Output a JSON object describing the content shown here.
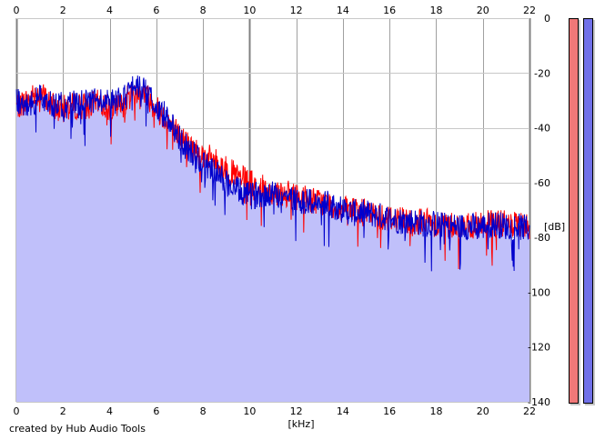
{
  "credit": "created by Hub Audio Tools",
  "meters": {
    "left_color": "#f07878",
    "right_color": "#7070e8"
  },
  "colors": {
    "left_channel": "#ff0000",
    "right_channel": "#0000cc",
    "fill": "#c0c0fa",
    "grid": "#a0a0a0"
  },
  "chart_data": {
    "type": "line",
    "title": "",
    "xlabel": "[kHz]",
    "ylabel": "[dB]",
    "xlim": [
      0,
      22
    ],
    "ylim": [
      -140,
      0
    ],
    "x_ticks": [
      "0",
      "2",
      "4",
      "6",
      "8",
      "10",
      "12",
      "14",
      "16",
      "18",
      "20",
      "22"
    ],
    "y_ticks": [
      "0",
      "-20",
      "-40",
      "-60",
      "-80",
      "-100",
      "-120",
      "-140"
    ],
    "grid": true,
    "x": [
      0,
      0.5,
      1,
      1.5,
      2,
      2.5,
      3,
      3.5,
      4,
      4.5,
      5,
      5.5,
      6,
      6.5,
      7,
      7.5,
      8,
      8.5,
      9,
      9.5,
      10,
      10.5,
      11,
      11.5,
      12,
      12.5,
      13,
      13.5,
      14,
      14.5,
      15,
      15.5,
      16,
      16.5,
      17,
      17.5,
      18,
      18.5,
      19,
      19.5,
      20,
      20.5,
      21,
      21.5,
      22
    ],
    "series": [
      {
        "values": [
          -32,
          -30,
          -27,
          -32,
          -33,
          -32,
          -32,
          -31,
          -33,
          -32,
          -27,
          -27,
          -33,
          -37,
          -43,
          -47,
          -50,
          -52,
          -55,
          -58,
          -60,
          -62,
          -63,
          -64,
          -65,
          -66,
          -67,
          -68,
          -70,
          -70,
          -71,
          -72,
          -73,
          -73,
          -74,
          -74,
          -75,
          -75,
          -76,
          -76,
          -75,
          -75,
          -75,
          -76,
          -76
        ]
      },
      {
        "values": [
          -30,
          -32,
          -29,
          -31,
          -32,
          -31,
          -31,
          -30,
          -31,
          -30,
          -25,
          -26,
          -33,
          -36,
          -44,
          -49,
          -53,
          -56,
          -60,
          -63,
          -65,
          -64,
          -64,
          -65,
          -66,
          -67,
          -68,
          -68,
          -70,
          -71,
          -71,
          -72,
          -73,
          -74,
          -74,
          -75,
          -75,
          -76,
          -76,
          -76,
          -76,
          -75,
          -76,
          -76,
          -77
        ]
      }
    ]
  }
}
